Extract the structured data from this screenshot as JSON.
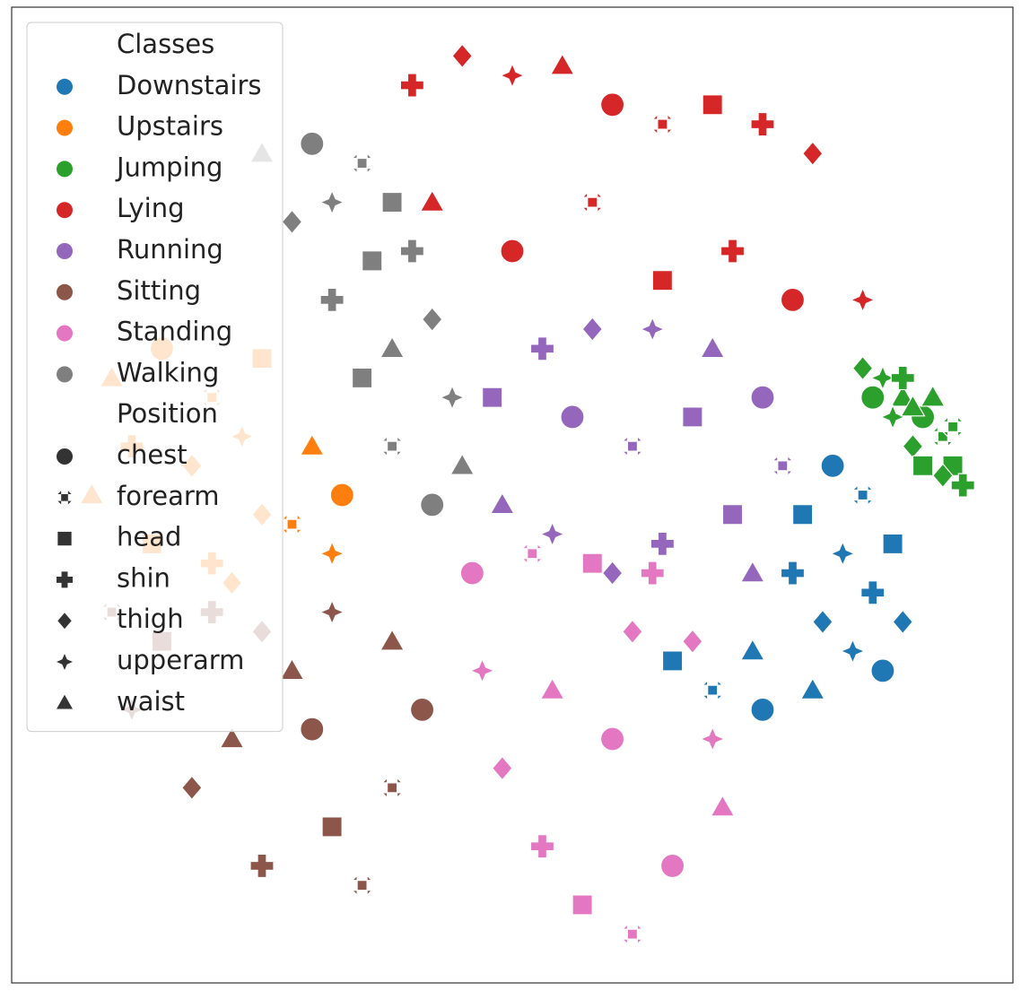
{
  "chart_data": {
    "type": "scatter",
    "xlim": [
      -50,
      50
    ],
    "ylim": [
      -50,
      50
    ],
    "legend_loc": "upper left",
    "hue_title": "Classes",
    "style_title": "Position",
    "styles": [
      {
        "name": "chest",
        "marker": "circle"
      },
      {
        "name": "forearm",
        "marker": "x"
      },
      {
        "name": "head",
        "marker": "square"
      },
      {
        "name": "shin",
        "marker": "plus"
      },
      {
        "name": "thigh",
        "marker": "diamond"
      },
      {
        "name": "upperarm",
        "marker": "star4"
      },
      {
        "name": "waist",
        "marker": "triangle"
      }
    ],
    "series": [
      {
        "name": "Downstairs",
        "color": "#1f77b4",
        "x": [
          32,
          35,
          38,
          36,
          39,
          34,
          30,
          25,
          20,
          16,
          28,
          31,
          33,
          24,
          37,
          29
        ],
        "values": [
          3,
          0,
          -5,
          -10,
          -13,
          -16,
          -20,
          -22,
          -20,
          -17,
          -8,
          -13,
          -6,
          -16,
          -18,
          -2
        ],
        "positions": [
          "chest",
          "forearm",
          "head",
          "shin",
          "thigh",
          "upperarm",
          "waist",
          "chest",
          "forearm",
          "head",
          "shin",
          "thigh",
          "upperarm",
          "waist",
          "chest",
          "head"
        ]
      },
      {
        "name": "Upstairs",
        "color": "#ff7f0e",
        "x": [
          -40,
          -35,
          -30,
          -25,
          -38,
          -32,
          -27,
          -20,
          -17,
          -22,
          -36,
          -30,
          -25,
          -18,
          -42,
          -28
        ],
        "values": [
          12,
          15,
          10,
          14,
          5,
          3,
          6,
          5,
          0,
          -3,
          -5,
          -7,
          -2,
          -6,
          0,
          -9
        ],
        "positions": [
          "waist",
          "chest",
          "forearm",
          "head",
          "shin",
          "thigh",
          "upperarm",
          "waist",
          "chest",
          "forearm",
          "head",
          "shin",
          "thigh",
          "upperarm",
          "waist",
          "thigh"
        ]
      },
      {
        "name": "Jumping",
        "color": "#2ca02c",
        "x": [
          35,
          37,
          39,
          41,
          43,
          44,
          45,
          40,
          38,
          42,
          36,
          44,
          41,
          39,
          43,
          40
        ],
        "values": [
          13,
          12,
          10,
          8,
          6,
          3,
          1,
          5,
          8,
          10,
          10,
          7,
          3,
          12,
          2,
          9
        ],
        "positions": [
          "thigh",
          "upperarm",
          "waist",
          "chest",
          "forearm",
          "head",
          "shin",
          "thigh",
          "upperarm",
          "waist",
          "chest",
          "forearm",
          "head",
          "shin",
          "thigh",
          "waist"
        ]
      },
      {
        "name": "Lying",
        "color": "#d62728",
        "x": [
          -10,
          -5,
          0,
          5,
          10,
          15,
          20,
          25,
          30,
          35,
          -8,
          0,
          8,
          15,
          22,
          28
        ],
        "values": [
          42,
          45,
          43,
          44,
          40,
          38,
          40,
          38,
          35,
          20,
          30,
          25,
          30,
          22,
          25,
          20
        ],
        "positions": [
          "shin",
          "thigh",
          "upperarm",
          "waist",
          "chest",
          "forearm",
          "head",
          "shin",
          "thigh",
          "upperarm",
          "waist",
          "chest",
          "forearm",
          "head",
          "shin",
          "chest"
        ]
      },
      {
        "name": "Running",
        "color": "#9467bd",
        "x": [
          -2,
          3,
          8,
          14,
          20,
          25,
          27,
          22,
          15,
          10,
          4,
          -1,
          6,
          12,
          18,
          24
        ],
        "values": [
          10,
          15,
          17,
          17,
          15,
          10,
          3,
          -2,
          -5,
          -8,
          -4,
          -1,
          8,
          5,
          8,
          -8
        ],
        "positions": [
          "head",
          "shin",
          "thigh",
          "upperarm",
          "waist",
          "chest",
          "forearm",
          "head",
          "shin",
          "thigh",
          "upperarm",
          "waist",
          "chest",
          "forearm",
          "head",
          "waist"
        ]
      },
      {
        "name": "Sitting",
        "color": "#8c564b",
        "x": [
          -40,
          -35,
          -30,
          -25,
          -18,
          -12,
          -9,
          -12,
          -18,
          -25,
          -32,
          -38,
          -28,
          -20,
          -15,
          -22
        ],
        "values": [
          -12,
          -15,
          -12,
          -14,
          -12,
          -15,
          -22,
          -30,
          -34,
          -38,
          -30,
          -22,
          -25,
          -24,
          -40,
          -18
        ],
        "positions": [
          "forearm",
          "head",
          "shin",
          "thigh",
          "upperarm",
          "waist",
          "chest",
          "forearm",
          "head",
          "shin",
          "thigh",
          "upperarm",
          "waist",
          "chest",
          "forearm",
          "waist"
        ]
      },
      {
        "name": "Standing",
        "color": "#e377c2",
        "x": [
          -4,
          2,
          8,
          14,
          18,
          20,
          21,
          16,
          12,
          7,
          3,
          -1,
          -3,
          4,
          10,
          12
        ],
        "values": [
          -8,
          -6,
          -7,
          -8,
          -15,
          -25,
          -32,
          -38,
          -45,
          -42,
          -36,
          -28,
          -18,
          -20,
          -25,
          -14
        ],
        "positions": [
          "chest",
          "forearm",
          "head",
          "shin",
          "thigh",
          "upperarm",
          "waist",
          "chest",
          "forearm",
          "head",
          "shin",
          "thigh",
          "upperarm",
          "waist",
          "chest",
          "thigh"
        ]
      },
      {
        "name": "Walking",
        "color": "#7f7f7f",
        "x": [
          -25,
          -20,
          -15,
          -12,
          -10,
          -8,
          -6,
          -5,
          -8,
          -12,
          -15,
          -18,
          -22,
          -18,
          -12,
          -14
        ],
        "values": [
          35,
          36,
          34,
          30,
          25,
          18,
          10,
          3,
          -1,
          5,
          12,
          20,
          28,
          30,
          15,
          24
        ],
        "positions": [
          "waist",
          "chest",
          "forearm",
          "head",
          "shin",
          "thigh",
          "upperarm",
          "waist",
          "chest",
          "forearm",
          "head",
          "shin",
          "thigh",
          "upperarm",
          "waist",
          "head"
        ]
      }
    ]
  }
}
